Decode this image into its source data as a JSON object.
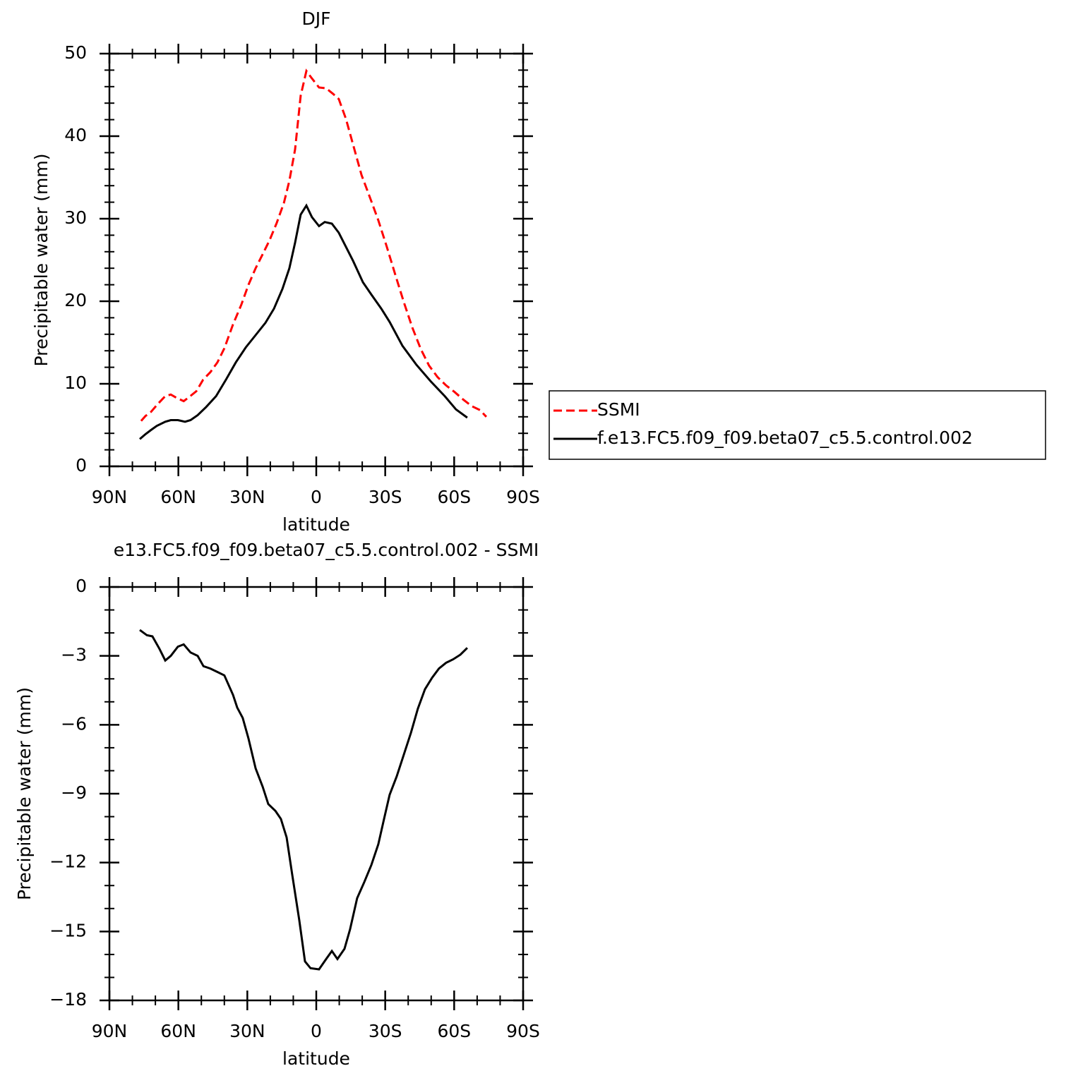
{
  "chart_data": [
    {
      "type": "line",
      "title": "DJF",
      "xlabel": "latitude",
      "ylabel": "Precipitable water (mm)",
      "xlim": [
        90,
        -90
      ],
      "xticks": [
        {
          "value": 90,
          "label": "90N"
        },
        {
          "value": 60,
          "label": "60N"
        },
        {
          "value": 30,
          "label": "30N"
        },
        0,
        {
          "value": -30,
          "label": "30S"
        },
        {
          "value": -60,
          "label": "60S"
        },
        {
          "value": -90,
          "label": "90S"
        }
      ],
      "ylim": [
        0,
        50
      ],
      "yticks": [
        0,
        10,
        20,
        30,
        40,
        50
      ],
      "legend": "outside-right",
      "series": [
        {
          "name": "SSMI",
          "color": "#ff0000",
          "line_style": "dashed",
          "x": [
            76.2,
            74.3,
            71.9,
            68.8,
            65.7,
            63.3,
            60.8,
            57.7,
            55.3,
            52.2,
            49.2,
            46.1,
            43.0,
            40.0,
            36.2,
            32.6,
            29.5,
            26.4,
            23.3,
            20.3,
            17.2,
            14.1,
            11.7,
            9.2,
            6.8,
            4.3,
            1.9,
            -1.2,
            -4.3,
            -7.4,
            -9.8,
            -12.9,
            -16.6,
            -19.7,
            -23.3,
            -27.0,
            -30.7,
            -34.4,
            -38.1,
            -41.8,
            -45.5,
            -49.1,
            -52.8,
            -56.5,
            -60.2,
            -63.9,
            -67.6,
            -71.3,
            -74.0
          ],
          "values": [
            5.5,
            6.1,
            6.6,
            7.6,
            8.5,
            8.7,
            8.3,
            7.9,
            8.4,
            9.1,
            10.5,
            11.4,
            12.6,
            14.3,
            17.2,
            19.6,
            22.0,
            24.0,
            25.7,
            27.4,
            29.5,
            31.9,
            34.6,
            38.4,
            44.9,
            47.9,
            47.0,
            45.9,
            45.8,
            45.1,
            44.5,
            42.1,
            38.4,
            35.3,
            32.6,
            29.8,
            26.6,
            23.2,
            19.9,
            16.8,
            14.2,
            12.2,
            10.8,
            9.8,
            9.0,
            8.1,
            7.3,
            6.8,
            6.0
          ]
        },
        {
          "name": "f.e13.FC5.f09_f09.beta07_c5.5.control.002",
          "color": "#000000",
          "line_style": "solid",
          "x": [
            76.8,
            74.3,
            71.9,
            69.4,
            65.7,
            63.3,
            60.2,
            57.1,
            54.7,
            51.6,
            47.9,
            43.6,
            39.3,
            35.0,
            30.7,
            26.4,
            22.1,
            18.4,
            14.7,
            11.7,
            9.2,
            6.8,
            4.3,
            1.9,
            -1.2,
            -3.7,
            -6.8,
            -9.8,
            -12.9,
            -16.0,
            -20.3,
            -24.0,
            -28.3,
            -31.9,
            -37.5,
            -43.6,
            -49.8,
            -55.9,
            -60.8,
            -65.7
          ],
          "values": [
            3.3,
            3.9,
            4.4,
            4.9,
            5.4,
            5.6,
            5.6,
            5.4,
            5.6,
            6.2,
            7.2,
            8.5,
            10.5,
            12.6,
            14.4,
            15.9,
            17.4,
            19.1,
            21.5,
            24.0,
            27.1,
            30.5,
            31.6,
            30.2,
            29.1,
            29.6,
            29.4,
            28.3,
            26.6,
            24.9,
            22.3,
            20.8,
            19.1,
            17.5,
            14.6,
            12.3,
            10.3,
            8.5,
            6.9,
            5.9
          ]
        }
      ]
    },
    {
      "type": "line",
      "title": "e13.FC5.f09_f09.beta07_c5.5.control.002 - SSMI",
      "xlabel": "latitude",
      "ylabel": "Precipitable water (mm)",
      "xlim": [
        90,
        -90
      ],
      "xticks": [
        {
          "value": 90,
          "label": "90N"
        },
        {
          "value": 60,
          "label": "60N"
        },
        {
          "value": 30,
          "label": "30N"
        },
        0,
        {
          "value": -30,
          "label": "30S"
        },
        {
          "value": -60,
          "label": "60S"
        },
        {
          "value": -90,
          "label": "90S"
        }
      ],
      "ylim": [
        -18,
        0
      ],
      "yticks": [
        {
          "value": -18,
          "label": "−18"
        },
        {
          "value": -15,
          "label": "−15"
        },
        {
          "value": -12,
          "label": "−12"
        },
        {
          "value": -9,
          "label": "−9"
        },
        {
          "value": -6,
          "label": "−6"
        },
        {
          "value": -3,
          "label": "−3"
        },
        0
      ],
      "series": [
        {
          "color": "#000000",
          "line_style": "solid",
          "x": [
            76.8,
            73.7,
            71.3,
            68.2,
            65.7,
            63.3,
            60.2,
            57.7,
            54.7,
            51.6,
            49.1,
            46.1,
            43.0,
            40.0,
            36.2,
            34.4,
            32.0,
            29.5,
            26.4,
            23.3,
            20.9,
            17.8,
            15.4,
            12.9,
            10.5,
            7.4,
            4.9,
            2.5,
            -1.2,
            -4.3,
            -6.8,
            -9.2,
            -12.3,
            -14.7,
            -17.8,
            -20.9,
            -24.0,
            -27.0,
            -29.5,
            -31.9,
            -35.0,
            -38.1,
            -41.2,
            -44.2,
            -47.3,
            -50.4,
            -53.4,
            -56.5,
            -59.6,
            -62.7,
            -65.7
          ],
          "values": [
            -1.87,
            -2.1,
            -2.15,
            -2.7,
            -3.2,
            -3.0,
            -2.6,
            -2.5,
            -2.85,
            -3.0,
            -3.45,
            -3.55,
            -3.7,
            -3.85,
            -4.7,
            -5.25,
            -5.7,
            -6.6,
            -7.9,
            -8.7,
            -9.45,
            -9.75,
            -10.1,
            -10.9,
            -12.5,
            -14.5,
            -16.3,
            -16.6,
            -16.65,
            -16.2,
            -15.85,
            -16.2,
            -15.75,
            -14.9,
            -13.55,
            -12.85,
            -12.1,
            -11.2,
            -10.1,
            -9.05,
            -8.25,
            -7.3,
            -6.35,
            -5.3,
            -4.45,
            -3.95,
            -3.55,
            -3.3,
            -3.15,
            -2.95,
            -2.65
          ]
        }
      ]
    }
  ]
}
